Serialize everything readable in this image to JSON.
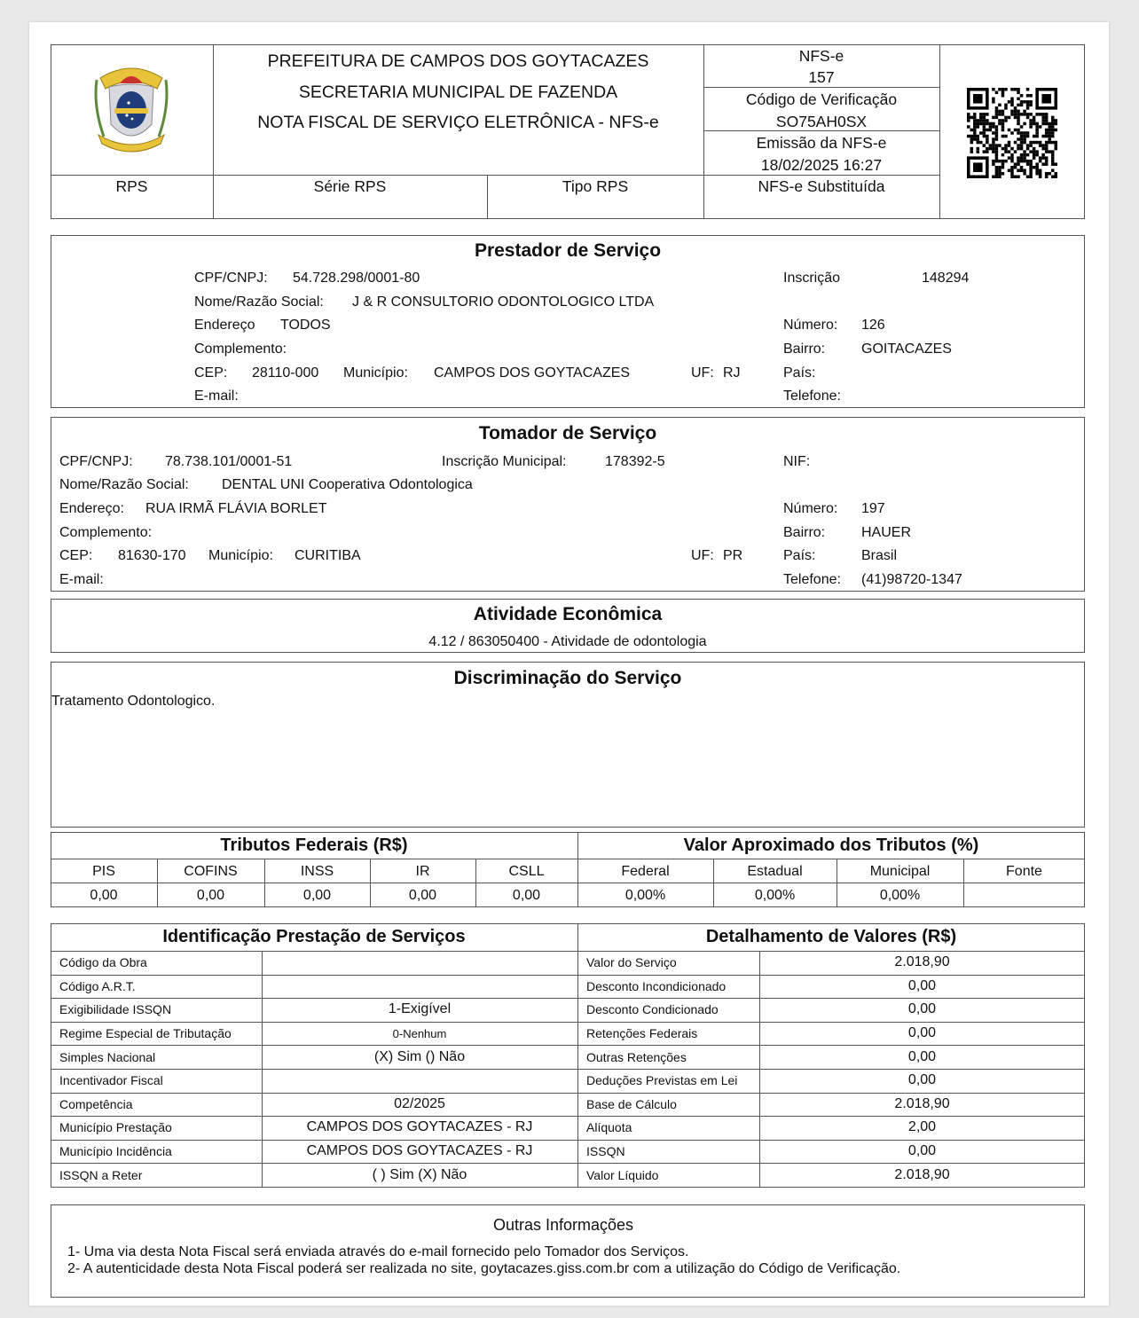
{
  "header": {
    "lines": [
      "PREFEITURA DE CAMPOS DOS GOYTACAZES",
      "SECRETARIA MUNICIPAL DE FAZENDA",
      "NOTA FISCAL DE SERVIÇO ELETRÔNICA - NFS-e"
    ],
    "nfse_label": "NFS-e",
    "nfse_number": "157",
    "verif_label": "Código de Verificação",
    "verif_code": "SO75AH0SX",
    "emissao_label": "Emissão da NFS-e",
    "emissao_value": "18/02/2025 16:27",
    "rps": "RPS",
    "serie_rps": "Série RPS",
    "tipo_rps": "Tipo RPS",
    "substituida": "NFS-e Substituída",
    "logo_icon": "coat-of-arms-icon",
    "qr_icon": "qr-code-icon"
  },
  "prestador": {
    "title": "Prestador de Serviço",
    "cnpj_label": "CPF/CNPJ:",
    "cnpj": "54.728.298/0001-80",
    "inscricao_label": "Inscrição",
    "inscricao": "148294",
    "nome_label": "Nome/Razão Social:",
    "nome": "J & R CONSULTORIO ODONTOLOGICO LTDA",
    "endereco_label": "Endereço",
    "endereco": "TODOS",
    "numero_label": "Número:",
    "numero": "126",
    "complemento_label": "Complemento:",
    "bairro_label": "Bairro:",
    "bairro": "GOITACAZES",
    "cep_label": "CEP:",
    "cep": "28110-000",
    "municipio_label": "Município:",
    "municipio": "CAMPOS DOS GOYTACAZES",
    "uf_label": "UF:",
    "uf": "RJ",
    "pais_label": "País:",
    "email_label": "E-mail:",
    "telefone_label": "Telefone:"
  },
  "tomador": {
    "title": "Tomador de Serviço",
    "cnpj_label": "CPF/CNPJ:",
    "cnpj": "78.738.101/0001-51",
    "im_label": "Inscrição Municipal:",
    "im": "178392-5",
    "nif_label": "NIF:",
    "nome_label": "Nome/Razão Social:",
    "nome": "DENTAL UNI Cooperativa Odontologica",
    "endereco_label": "Endereço:",
    "endereco": "RUA IRMÃ FLÁVIA BORLET",
    "numero_label": "Número:",
    "numero": "197",
    "complemento_label": "Complemento:",
    "bairro_label": "Bairro:",
    "bairro": "HAUER",
    "cep_label": "CEP:",
    "cep": "81630-170",
    "municipio_label": "Município:",
    "municipio": "CURITIBA",
    "uf_label": "UF:",
    "uf": "PR",
    "pais_label": "País:",
    "pais": "Brasil",
    "email_label": "E-mail:",
    "telefone_label": "Telefone:",
    "telefone": "(41)98720-1347"
  },
  "atividade": {
    "title": "Atividade Econômica",
    "text": "4.12 / 863050400 - Atividade de odontologia"
  },
  "discriminacao": {
    "title": "Discriminação do Serviço",
    "text": "Tratamento Odontologico."
  },
  "tributos": {
    "title": "Tributos Federais (R$)",
    "cols": [
      "PIS",
      "COFINS",
      "INSS",
      "IR",
      "CSLL"
    ],
    "values": [
      "0,00",
      "0,00",
      "0,00",
      "0,00",
      "0,00"
    ]
  },
  "aproximado": {
    "title": "Valor Aproximado dos Tributos (%)",
    "cols": [
      "Federal",
      "Estadual",
      "Municipal",
      "Fonte"
    ],
    "values": [
      "0,00%",
      "0,00%",
      "0,00%",
      ""
    ]
  },
  "identificacao": {
    "title": "Identificação Prestação de Serviços",
    "rows": [
      {
        "label": "Código da Obra",
        "value": ""
      },
      {
        "label": "Código A.R.T.",
        "value": ""
      },
      {
        "label": "Exigibilidade ISSQN",
        "value": "1-Exigível"
      },
      {
        "label": "Regime Especial de Tributação",
        "value": "0-Nenhum"
      },
      {
        "label": "Simples Nacional",
        "value": "(X) Sim () Não"
      },
      {
        "label": "Incentivador Fiscal",
        "value": ""
      },
      {
        "label": "Competência",
        "value": "02/2025"
      },
      {
        "label": "Município Prestação",
        "value": "CAMPOS DOS GOYTACAZES - RJ"
      },
      {
        "label": "Município Incidência",
        "value": "CAMPOS DOS GOYTACAZES - RJ"
      },
      {
        "label": "ISSQN a Reter",
        "value": "( ) Sim (X) Não"
      }
    ]
  },
  "detalhamento": {
    "title": "Detalhamento de Valores (R$)",
    "rows": [
      {
        "label": "Valor do Serviço",
        "value": "2.018,90"
      },
      {
        "label": "Desconto Incondicionado",
        "value": "0,00"
      },
      {
        "label": "Desconto Condicionado",
        "value": "0,00"
      },
      {
        "label": "Retenções Federais",
        "value": "0,00"
      },
      {
        "label": "Outras Retenções",
        "value": "0,00"
      },
      {
        "label": "Deduções Previstas em Lei",
        "value": "0,00"
      },
      {
        "label": "Base de Cálculo",
        "value": "2.018,90"
      },
      {
        "label": "Alíquota",
        "value": "2,00"
      },
      {
        "label": "ISSQN",
        "value": "0,00"
      },
      {
        "label": "Valor Líquido",
        "value": "2.018,90"
      }
    ]
  },
  "outras": {
    "title": "Outras Informações",
    "lines": [
      "1- Uma via desta Nota Fiscal será enviada através do e-mail fornecido pelo Tomador dos Serviços.",
      "2- A autenticidade desta Nota Fiscal poderá ser realizada no site, goytacazes.giss.com.br com a utilização do Código de Verificação."
    ]
  }
}
